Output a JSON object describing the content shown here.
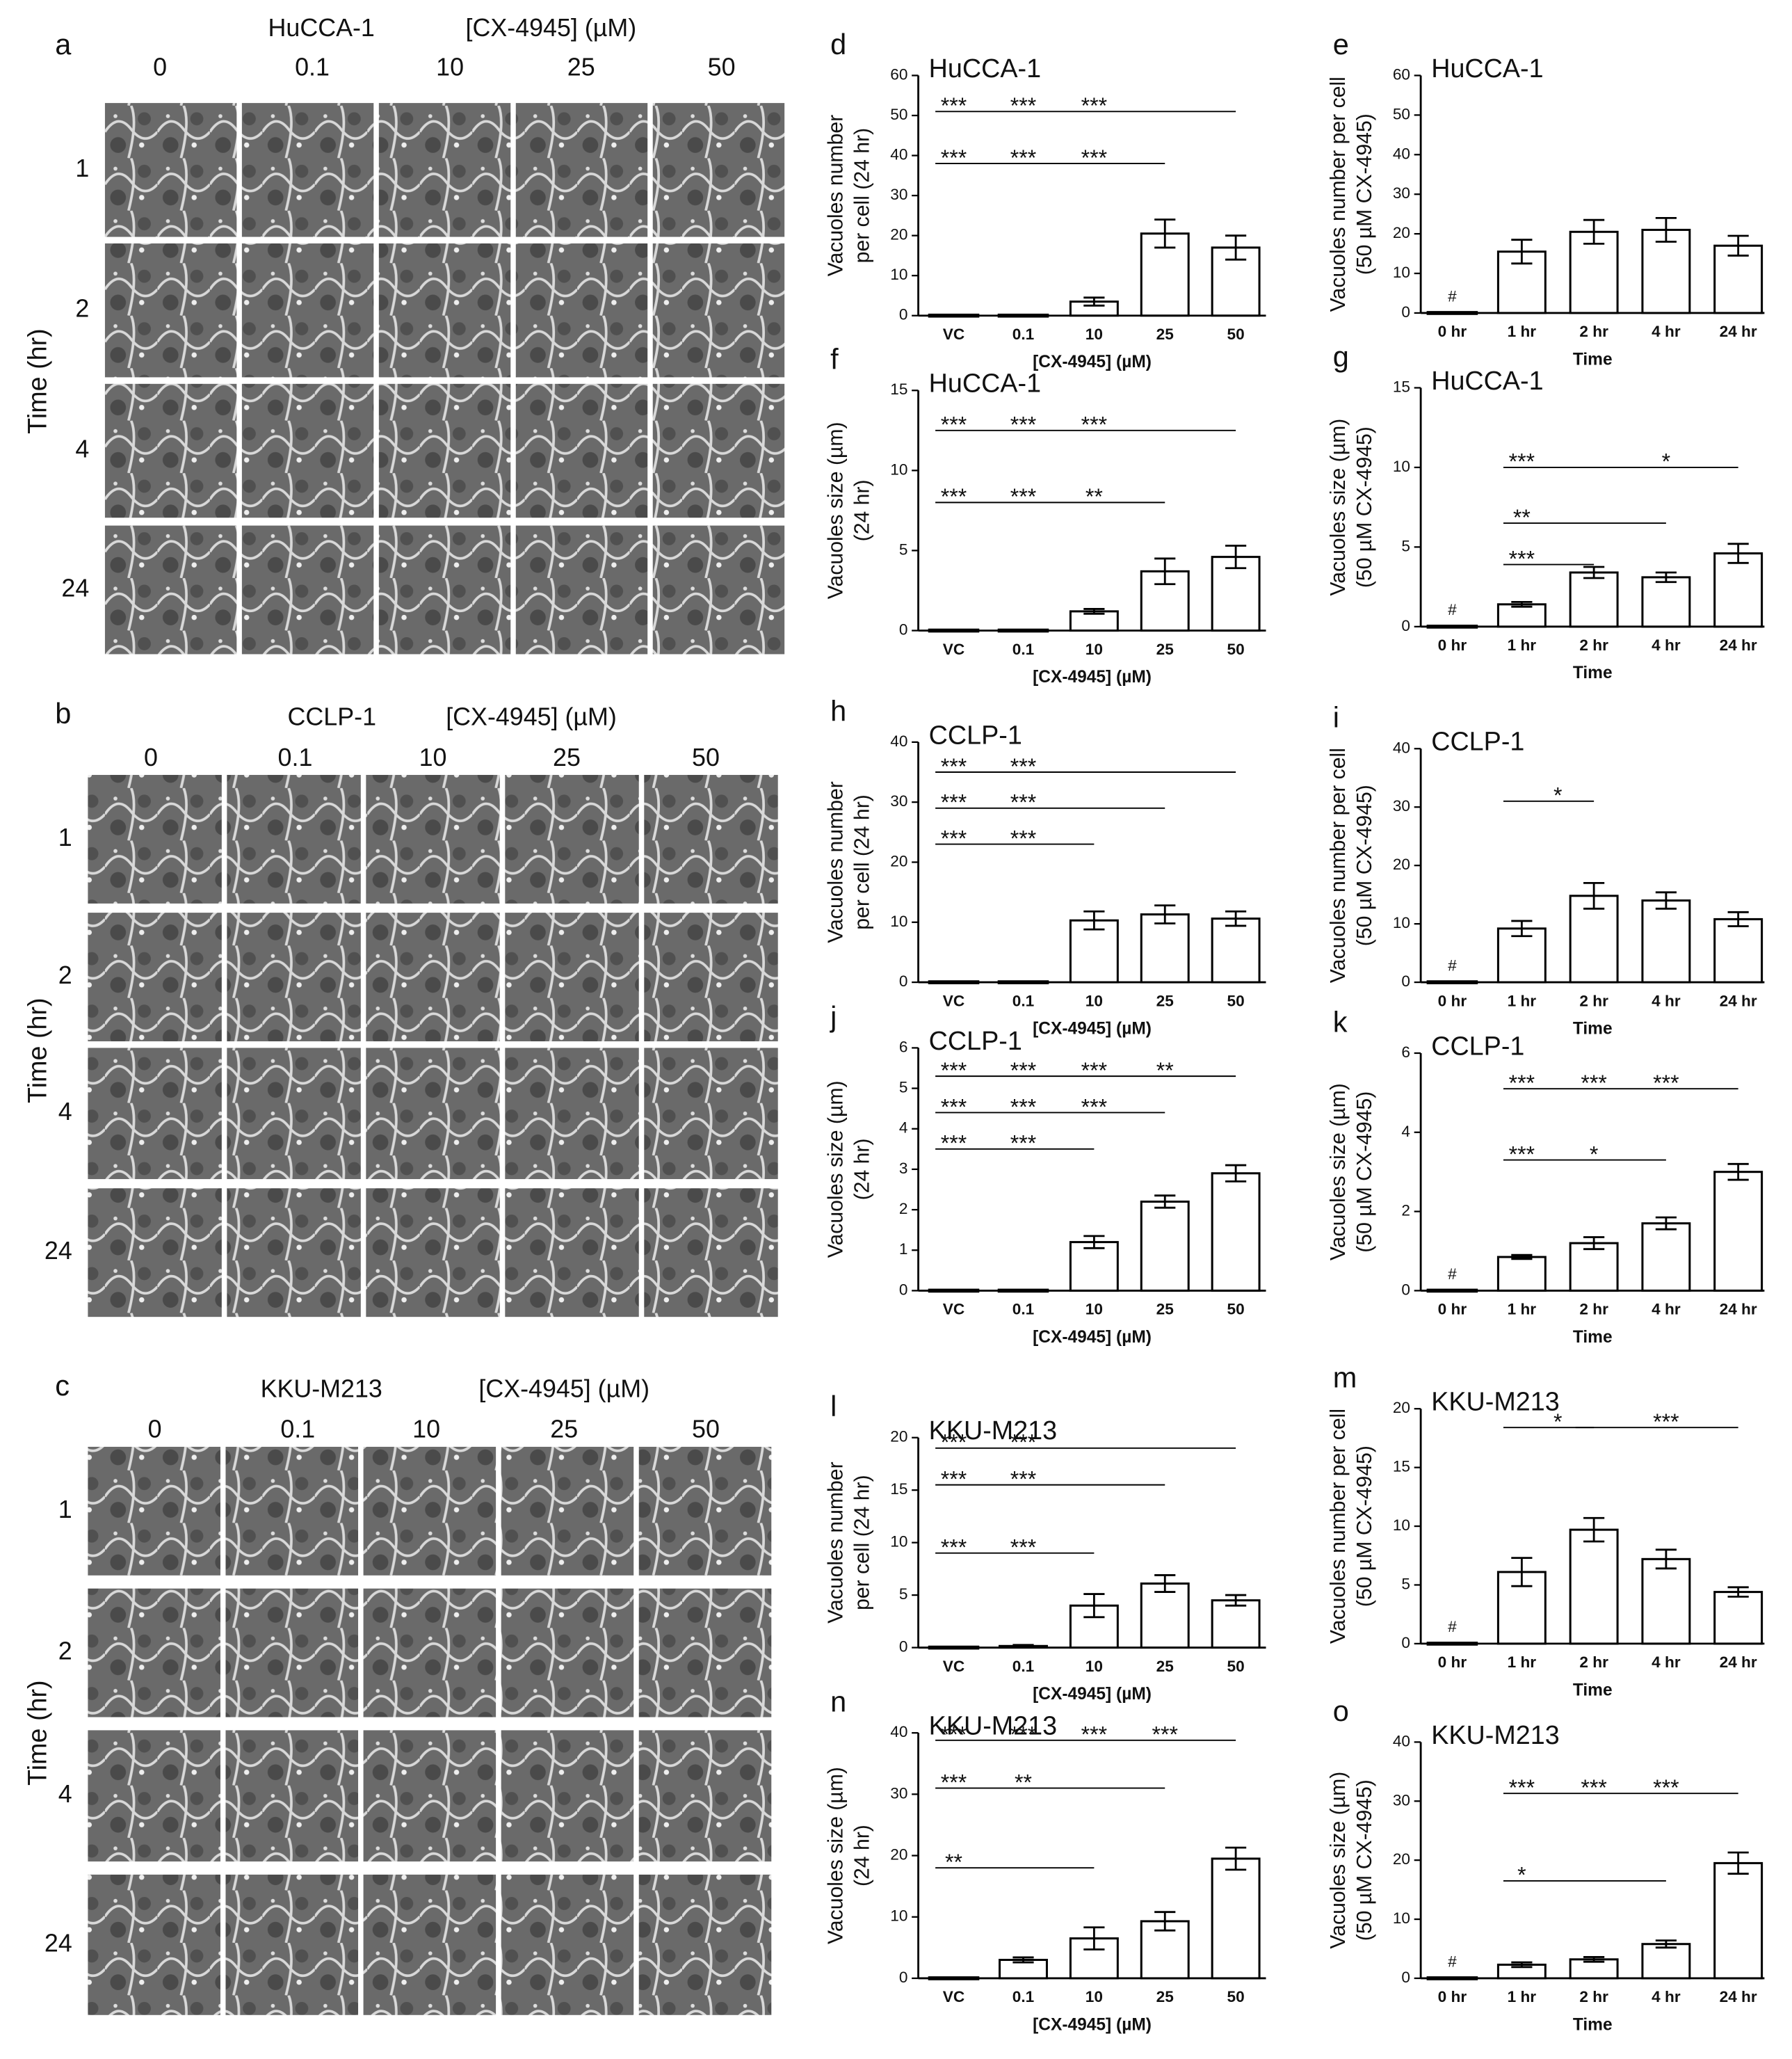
{
  "micrographs": [
    {
      "letter": "a",
      "cell_line": "HuCCA-1",
      "axis_label": "[CX-4945] (µM)",
      "concentrations": [
        "0",
        "0.1",
        "10",
        "25",
        "50"
      ],
      "times": [
        "1",
        "2",
        "4",
        "24"
      ],
      "time_label": "Time (hr)"
    },
    {
      "letter": "b",
      "cell_line": "CCLP-1",
      "axis_label": "[CX-4945] (µM)",
      "concentrations": [
        "0",
        "0.1",
        "10",
        "25",
        "50"
      ],
      "times": [
        "1",
        "2",
        "4",
        "24"
      ],
      "time_label": "Time (hr)"
    },
    {
      "letter": "c",
      "cell_line": "KKU-M213",
      "axis_label": "[CX-4945] (µM)",
      "concentrations": [
        "0",
        "0.1",
        "10",
        "25",
        "50"
      ],
      "times": [
        "1",
        "2",
        "4",
        "24"
      ],
      "time_label": "Time (hr)"
    }
  ],
  "chart_data": [
    {
      "type": "bar",
      "letter": "d",
      "title": "HuCCA-1",
      "ylabel": [
        "Vacuoles number",
        "per cell (24 hr)"
      ],
      "xlabel": "[CX-4945] (µM)",
      "categories": [
        "VC",
        "0.1",
        "10",
        "25",
        "50"
      ],
      "values": [
        0,
        0,
        3.5,
        20.5,
        17
      ],
      "errors": [
        0,
        0,
        1,
        3.5,
        3
      ],
      "ylim": [
        0,
        60
      ],
      "yticks": [
        0,
        10,
        20,
        30,
        40,
        50,
        60
      ],
      "brackets": [
        {
          "from": "VC",
          "to": "50",
          "y": 51,
          "labels": [
            {
              "text": "***",
              "at": "VC"
            },
            {
              "text": "***",
              "at": "0.1"
            },
            {
              "text": "***",
              "at": "10"
            }
          ]
        },
        {
          "from": "VC",
          "to": "25",
          "y": 38,
          "labels": [
            {
              "text": "***",
              "at": "VC"
            },
            {
              "text": "***",
              "at": "0.1"
            },
            {
              "text": "***",
              "at": "10"
            }
          ]
        }
      ]
    },
    {
      "type": "bar",
      "letter": "e",
      "title": "HuCCA-1",
      "ylabel": [
        "Vacuoles number per cell",
        "(50 µM CX-4945)"
      ],
      "xlabel": "Time",
      "categories": [
        "0 hr",
        "1 hr",
        "2 hr",
        "4 hr",
        "24 hr"
      ],
      "values": [
        0,
        15.5,
        20.5,
        21,
        17
      ],
      "errors": [
        0,
        3,
        3,
        3,
        2.5
      ],
      "ylim": [
        0,
        60
      ],
      "yticks": [
        0,
        10,
        20,
        30,
        40,
        50,
        60
      ],
      "annotation": "#",
      "brackets": []
    },
    {
      "type": "bar",
      "letter": "f",
      "title": "HuCCA-1",
      "ylabel": [
        "Vacuoles size (µm)",
        "(24 hr)"
      ],
      "xlabel": "[CX-4945] (µM)",
      "categories": [
        "VC",
        "0.1",
        "10",
        "25",
        "50"
      ],
      "values": [
        0,
        0,
        1.2,
        3.7,
        4.6
      ],
      "errors": [
        0,
        0,
        0.15,
        0.8,
        0.7
      ],
      "ylim": [
        0,
        15
      ],
      "yticks": [
        0,
        5,
        10,
        15
      ],
      "brackets": [
        {
          "from": "VC",
          "to": "50",
          "y": 12.5,
          "labels": [
            {
              "text": "***",
              "at": "VC"
            },
            {
              "text": "***",
              "at": "0.1"
            },
            {
              "text": "***",
              "at": "10"
            }
          ]
        },
        {
          "from": "VC",
          "to": "25",
          "y": 8,
          "labels": [
            {
              "text": "***",
              "at": "VC"
            },
            {
              "text": "***",
              "at": "0.1"
            },
            {
              "text": "**",
              "at": "10"
            }
          ]
        }
      ]
    },
    {
      "type": "bar",
      "letter": "g",
      "title": "HuCCA-1",
      "ylabel": [
        "Vacuoles size (µm)",
        "(50 µM CX-4945)"
      ],
      "xlabel": "Time",
      "categories": [
        "0 hr",
        "1 hr",
        "2 hr",
        "4 hr",
        "24 hr"
      ],
      "values": [
        0,
        1.4,
        3.4,
        3.1,
        4.6
      ],
      "errors": [
        0,
        0.15,
        0.35,
        0.3,
        0.6
      ],
      "ylim": [
        0,
        15
      ],
      "yticks": [
        0,
        5,
        10,
        15
      ],
      "annotation": "#",
      "brackets": [
        {
          "from": "1 hr",
          "to": "24 hr",
          "y": 10,
          "labels": [
            {
              "text": "***",
              "at": "1 hr"
            },
            {
              "text": "*",
              "at": "4 hr"
            }
          ]
        },
        {
          "from": "1 hr",
          "to": "4 hr",
          "y": 6.5,
          "labels": [
            {
              "text": "**",
              "at": "1 hr"
            }
          ]
        },
        {
          "from": "1 hr",
          "to": "2 hr",
          "y": 3.9,
          "labels": [
            {
              "text": "***",
              "at": "1 hr"
            }
          ]
        }
      ]
    },
    {
      "type": "bar",
      "letter": "h",
      "title": "CCLP-1",
      "ylabel": [
        "Vacuoles number",
        "per cell (24 hr)"
      ],
      "xlabel": "[CX-4945] (µM)",
      "categories": [
        "VC",
        "0.1",
        "10",
        "25",
        "50"
      ],
      "values": [
        0,
        0,
        10.3,
        11.3,
        10.6
      ],
      "errors": [
        0,
        0,
        1.5,
        1.5,
        1.2
      ],
      "ylim": [
        0,
        40
      ],
      "yticks": [
        0,
        10,
        20,
        30,
        40
      ],
      "brackets": [
        {
          "from": "VC",
          "to": "50",
          "y": 35,
          "labels": [
            {
              "text": "***",
              "at": "VC"
            },
            {
              "text": "***",
              "at": "0.1"
            }
          ]
        },
        {
          "from": "VC",
          "to": "25",
          "y": 29,
          "labels": [
            {
              "text": "***",
              "at": "VC"
            },
            {
              "text": "***",
              "at": "0.1"
            }
          ]
        },
        {
          "from": "VC",
          "to": "10",
          "y": 23,
          "labels": [
            {
              "text": "***",
              "at": "VC"
            },
            {
              "text": "***",
              "at": "0.1"
            }
          ]
        }
      ]
    },
    {
      "type": "bar",
      "letter": "i",
      "title": "CCLP-1",
      "ylabel": [
        "Vacuoles number per cell",
        "(50 µM CX-4945)"
      ],
      "xlabel": "Time",
      "categories": [
        "0 hr",
        "1 hr",
        "2 hr",
        "4 hr",
        "24 hr"
      ],
      "values": [
        0,
        9.2,
        14.8,
        14,
        10.8
      ],
      "errors": [
        0,
        1.3,
        2.2,
        1.4,
        1.2
      ],
      "ylim": [
        0,
        40
      ],
      "yticks": [
        0,
        10,
        20,
        30,
        40
      ],
      "annotation": "#",
      "brackets": [
        {
          "from": "1 hr",
          "to": "2 hr",
          "y": 31,
          "labels": [
            {
              "text": "*"
            }
          ]
        }
      ]
    },
    {
      "type": "bar",
      "letter": "j",
      "title": "CCLP-1",
      "ylabel": [
        "Vacuoles size (µm)",
        "(24 hr)"
      ],
      "xlabel": "[CX-4945] (µM)",
      "categories": [
        "VC",
        "0.1",
        "10",
        "25",
        "50"
      ],
      "values": [
        0,
        0,
        1.2,
        2.2,
        2.9
      ],
      "errors": [
        0,
        0,
        0.15,
        0.15,
        0.2
      ],
      "ylim": [
        0,
        6
      ],
      "yticks": [
        0,
        1,
        2,
        3,
        4,
        5,
        6
      ],
      "brackets": [
        {
          "from": "VC",
          "to": "50",
          "y": 5.3,
          "labels": [
            {
              "text": "***",
              "at": "VC"
            },
            {
              "text": "***",
              "at": "0.1"
            },
            {
              "text": "***",
              "at": "10"
            },
            {
              "text": "**",
              "at": "25"
            }
          ]
        },
        {
          "from": "VC",
          "to": "25",
          "y": 4.4,
          "labels": [
            {
              "text": "***",
              "at": "VC"
            },
            {
              "text": "***",
              "at": "0.1"
            },
            {
              "text": "***",
              "at": "10"
            }
          ]
        },
        {
          "from": "VC",
          "to": "10",
          "y": 3.5,
          "labels": [
            {
              "text": "***",
              "at": "VC"
            },
            {
              "text": "***",
              "at": "0.1"
            }
          ]
        }
      ]
    },
    {
      "type": "bar",
      "letter": "k",
      "title": "CCLP-1",
      "ylabel": [
        "Vacuoles size (µm)",
        "(50 µM CX-4945)"
      ],
      "xlabel": "Time",
      "categories": [
        "0 hr",
        "1 hr",
        "2 hr",
        "4 hr",
        "24 hr"
      ],
      "values": [
        0,
        0.85,
        1.2,
        1.7,
        3
      ],
      "errors": [
        0,
        0.05,
        0.15,
        0.15,
        0.2
      ],
      "ylim": [
        0,
        6
      ],
      "yticks": [
        0,
        2,
        4,
        6
      ],
      "annotation": "#",
      "brackets": [
        {
          "from": "1 hr",
          "to": "24 hr",
          "y": 5.1,
          "labels": [
            {
              "text": "***",
              "at": "1 hr"
            },
            {
              "text": "***",
              "at": "2 hr"
            },
            {
              "text": "***",
              "at": "4 hr"
            }
          ]
        },
        {
          "from": "1 hr",
          "to": "4 hr",
          "y": 3.3,
          "labels": [
            {
              "text": "***",
              "at": "1 hr"
            },
            {
              "text": "*",
              "at": "2 hr"
            }
          ]
        }
      ]
    },
    {
      "type": "bar",
      "letter": "l",
      "title": "KKU-M213",
      "ylabel": [
        "Vacuoles number",
        "per cell (24 hr)"
      ],
      "xlabel": "[CX-4945] (µM)",
      "categories": [
        "VC",
        "0.1",
        "10",
        "25",
        "50"
      ],
      "values": [
        0,
        0.15,
        4,
        6.1,
        4.5
      ],
      "errors": [
        0,
        0.1,
        1.1,
        0.8,
        0.5
      ],
      "ylim": [
        0,
        20
      ],
      "yticks": [
        0,
        5,
        10,
        15,
        20
      ],
      "brackets": [
        {
          "from": "VC",
          "to": "50",
          "y": 19,
          "labels": [
            {
              "text": "***",
              "at": "VC"
            },
            {
              "text": "***",
              "at": "0.1"
            }
          ]
        },
        {
          "from": "VC",
          "to": "25",
          "y": 15.5,
          "labels": [
            {
              "text": "***",
              "at": "VC"
            },
            {
              "text": "***",
              "at": "0.1"
            }
          ]
        },
        {
          "from": "VC",
          "to": "10",
          "y": 9,
          "labels": [
            {
              "text": "***",
              "at": "VC"
            },
            {
              "text": "***",
              "at": "0.1"
            }
          ]
        }
      ]
    },
    {
      "type": "bar",
      "letter": "m",
      "title": "KKU-M213",
      "ylabel": [
        "Vacuoles number per cell",
        "(50 µM CX-4945)"
      ],
      "xlabel": "Time",
      "categories": [
        "0 hr",
        "1 hr",
        "2 hr",
        "4 hr",
        "24 hr"
      ],
      "values": [
        0,
        6.1,
        9.7,
        7.2,
        4.4
      ],
      "errors": [
        0,
        1.2,
        1,
        0.8,
        0.4
      ],
      "ylim": [
        0,
        20
      ],
      "yticks": [
        0,
        5,
        10,
        15,
        20
      ],
      "annotation": "#",
      "brackets": [
        {
          "from": "1 hr",
          "to": "2 hr",
          "y": 18.4,
          "labels": [
            {
              "text": "*"
            }
          ]
        },
        {
          "from": "2 hr",
          "to": "24 hr",
          "y": 18.4,
          "labels": [
            {
              "text": "***"
            }
          ]
        }
      ]
    },
    {
      "type": "bar",
      "letter": "n",
      "title": "KKU-M213",
      "ylabel": [
        "Vacuoles size (µm)",
        "(24 hr)"
      ],
      "xlabel": "[CX-4945] (µM)",
      "categories": [
        "VC",
        "0.1",
        "10",
        "25",
        "50"
      ],
      "values": [
        0,
        3,
        6.5,
        9.3,
        19.5
      ],
      "errors": [
        0,
        0.4,
        1.8,
        1.5,
        1.8
      ],
      "ylim": [
        0,
        40
      ],
      "yticks": [
        0,
        10,
        20,
        30,
        40
      ],
      "brackets": [
        {
          "from": "VC",
          "to": "50",
          "y": 38.8,
          "labels": [
            {
              "text": "***",
              "at": "VC"
            },
            {
              "text": "***",
              "at": "0.1"
            },
            {
              "text": "***",
              "at": "10"
            },
            {
              "text": "***",
              "at": "25"
            }
          ]
        },
        {
          "from": "VC",
          "to": "25",
          "y": 31,
          "labels": [
            {
              "text": "***",
              "at": "VC"
            },
            {
              "text": "**",
              "at": "0.1"
            }
          ]
        },
        {
          "from": "VC",
          "to": "10",
          "y": 18,
          "labels": [
            {
              "text": "**",
              "at": "VC"
            }
          ]
        }
      ]
    },
    {
      "type": "bar",
      "letter": "o",
      "title": "KKU-M213",
      "ylabel": [
        "Vacuoles size (µm)",
        "(50 µM CX-4945)"
      ],
      "xlabel": "Time",
      "categories": [
        "0 hr",
        "1 hr",
        "2 hr",
        "4 hr",
        "24 hr"
      ],
      "values": [
        0,
        2.3,
        3.2,
        5.8,
        19.5
      ],
      "errors": [
        0,
        0.4,
        0.4,
        0.6,
        1.8
      ],
      "ylim": [
        0,
        40
      ],
      "yticks": [
        0,
        10,
        20,
        30,
        40
      ],
      "annotation": "#",
      "brackets": [
        {
          "from": "1 hr",
          "to": "24 hr",
          "y": 31.3,
          "labels": [
            {
              "text": "***",
              "at": "1 hr"
            },
            {
              "text": "***",
              "at": "2 hr"
            },
            {
              "text": "***",
              "at": "4 hr"
            }
          ]
        },
        {
          "from": "1 hr",
          "to": "4 hr",
          "y": 16.5,
          "labels": [
            {
              "text": "*",
              "at": "1 hr"
            }
          ]
        }
      ]
    }
  ]
}
